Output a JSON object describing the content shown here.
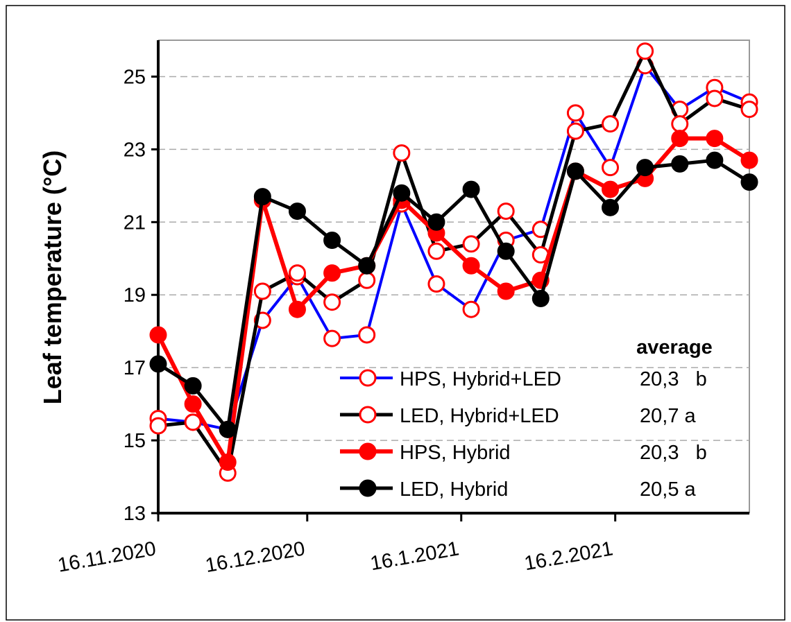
{
  "chart_data": {
    "type": "line",
    "ylabel": "Leaf temperature (°C)",
    "x": [
      "2020-11-16",
      "2020-11-23",
      "2020-11-30",
      "2020-12-07",
      "2020-12-14",
      "2020-12-21",
      "2020-12-28",
      "2021-01-04",
      "2021-01-11",
      "2021-01-18",
      "2021-01-25",
      "2021-02-01",
      "2021-02-08",
      "2021-02-15",
      "2021-02-22",
      "2021-03-01",
      "2021-03-08",
      "2021-03-15"
    ],
    "xlim": [
      "2020-11-16",
      "2021-03-15"
    ],
    "xticks": [
      {
        "value": "2020-11-16",
        "label": "16.11.2020"
      },
      {
        "value": "2020-12-16",
        "label": "16.12.2020"
      },
      {
        "value": "2021-01-16",
        "label": "16.1.2021"
      },
      {
        "value": "2021-02-16",
        "label": "16.2.2021"
      }
    ],
    "ylim": [
      13,
      26
    ],
    "yticks": [
      13,
      15,
      17,
      19,
      21,
      23,
      25
    ],
    "grid": true,
    "legend_title": "average",
    "series": [
      {
        "name": "HPS, Hybrid+LED",
        "average": "20,3   b",
        "color": "#0000ff",
        "marker_color": "#ff0000",
        "marker_fill": "#ffffff",
        "values": [
          15.6,
          15.5,
          15.3,
          18.3,
          19.5,
          17.8,
          17.9,
          21.5,
          19.3,
          18.6,
          20.5,
          20.8,
          24.0,
          22.5,
          25.3,
          24.1,
          24.7,
          24.3
        ]
      },
      {
        "name": "LED, Hybrid+LED",
        "average": "20,7 a",
        "color": "#000000",
        "marker_color": "#ff0000",
        "marker_fill": "#ffffff",
        "values": [
          15.4,
          15.5,
          14.1,
          19.1,
          19.6,
          18.8,
          19.4,
          22.9,
          20.2,
          20.4,
          21.3,
          20.1,
          23.5,
          23.7,
          25.7,
          23.7,
          24.4,
          24.1
        ]
      },
      {
        "name": "HPS, Hybrid",
        "average": "20,3   b",
        "color": "#ff0000",
        "marker_color": "#ff0000",
        "marker_fill": "#ff0000",
        "values": [
          17.9,
          16.0,
          14.4,
          21.6,
          18.6,
          19.6,
          19.8,
          21.6,
          20.7,
          19.8,
          19.1,
          19.4,
          22.4,
          21.9,
          22.2,
          23.3,
          23.3,
          22.7
        ]
      },
      {
        "name": "LED, Hybrid",
        "average": "20,5 a",
        "color": "#000000",
        "marker_color": "#000000",
        "marker_fill": "#000000",
        "values": [
          17.1,
          16.5,
          15.3,
          21.7,
          21.3,
          20.5,
          19.8,
          21.8,
          21.0,
          21.9,
          20.2,
          18.9,
          22.4,
          21.4,
          22.5,
          22.6,
          22.7,
          22.1
        ]
      }
    ]
  }
}
